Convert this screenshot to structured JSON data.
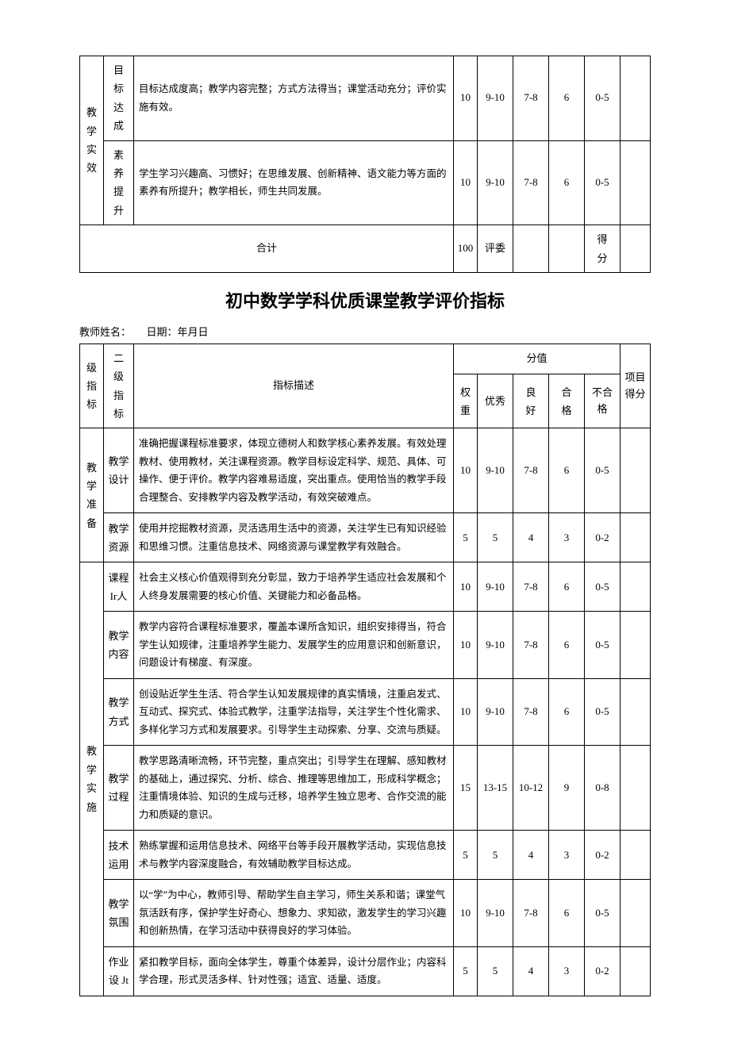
{
  "topTable": {
    "level1": "教学实效",
    "rows": [
      {
        "l2": "目标达成",
        "desc": "目标达成度高；教学内容完整；方式方法得当；课堂活动充分；评价实施有效。",
        "weight": "10",
        "s1": "9-10",
        "s2": "7-8",
        "s3": "6",
        "s4": "0-5"
      },
      {
        "l2": "素养提升",
        "desc": "学生学习兴趣高、习惯好；在思维发展、创新精神、语文能力等方面的素养有所提升；教学相长，师生共同发展。",
        "weight": "10",
        "s1": "9-10",
        "s2": "7-8",
        "s3": "6",
        "s4": "0-5"
      }
    ],
    "totalLabel": "合计",
    "totalWeight": "100",
    "judgeLabel": "评委",
    "scoreLabel": "得分"
  },
  "title": "初中数学学科优质课堂教学评价指标",
  "meta": "教师姓名：　　日期：年月日",
  "header": {
    "l1": "级指标",
    "l2": "二级指标",
    "desc": "指标描述",
    "scoreGroup": "分值",
    "weight": "权重",
    "s1": "优秀",
    "s2": "良好",
    "s3": "合格",
    "s4": "不合格",
    "itemScore": "项目得分"
  },
  "sections": [
    {
      "l1": "教学准备",
      "rows": [
        {
          "l2": "教学设计",
          "desc": "准确把握课程标准要求，体现立德树人和数学核心素养发展。有效处理教材、使用教材，关注课程资源。教学目标设定科学、规范、具体、可操作、便于评价。教学内容难易适度，突出重点。使用恰当的教学手段合理整合、安排教学内容及教学活动，有效突破难点。",
          "weight": "10",
          "s1": "9-10",
          "s2": "7-8",
          "s3": "6",
          "s4": "0-5"
        },
        {
          "l2": "教学资源",
          "desc": "使用并挖掘教材资源，灵活选用生活中的资源，关注学生已有知识经验和思维习惯。注重信息技术、网络资源与课堂教学有效融合。",
          "weight": "5",
          "s1": "5",
          "s2": "4",
          "s3": "3",
          "s4": "0-2"
        }
      ]
    },
    {
      "l1": "教学实施",
      "rows": [
        {
          "l2": "课程\nIr人",
          "desc": "社会主义核心价值观得到充分彰显，致力于培养学生适应社会发展和个人终身发展需要的核心价值、关键能力和必备品格。",
          "weight": "10",
          "s1": "9-10",
          "s2": "7-8",
          "s3": "6",
          "s4": "0-5"
        },
        {
          "l2": "教学内容",
          "desc": "教学内容符合课程标准要求，覆盖本课所含知识，组织安排得当，符合学生认知规律，注重培养学生能力、发展学生的应用意识和创新意识，问题设计有梯度、有深度。",
          "weight": "10",
          "s1": "9-10",
          "s2": "7-8",
          "s3": "6",
          "s4": "0-5"
        },
        {
          "l2": "教学方式",
          "desc": "创设贴近学生生活、符合学生认知发展规律的真实情境，注重启发式、互动式、探究式、体验式教学，注重学法指导，关注学生个性化需求、多样化学习方式和发展要求。引导学生主动探索、分享、交流与质疑。",
          "weight": "10",
          "s1": "9-10",
          "s2": "7-8",
          "s3": "6",
          "s4": "0-5"
        },
        {
          "l2": "教学过程",
          "desc": "教学思路清晰流畅，环节完整，重点突出；引导学生在理解、感知教材的基础上，通过探究、分析、综合、推理等思维加工，形成科学概念；注重情境体验、知识的生成与迁移，培养学生独立思考、合作交流的能力和质疑的意识。",
          "weight": "15",
          "s1": "13-15",
          "s2": "10-12",
          "s3": "9",
          "s4": "0-8"
        },
        {
          "l2": "技术运用",
          "desc": "熟练掌握和运用信息技术、网络平台等手段开展教学活动，实现信息技术与教学内容深度融合，有效辅助教学目标达成。",
          "weight": "5",
          "s1": "5",
          "s2": "4",
          "s3": "3",
          "s4": "0-2"
        },
        {
          "l2": "教学氛围",
          "desc": "以“学”为中心，教师引导、帮助学生自主学习，师生关系和谐；课堂气氛活跃有序，保护学生好奇心、想象力、求知欲，激发学生的学习兴趣和创新热情，在学习活动中获得良好的学习体验。",
          "weight": "10",
          "s1": "9-10",
          "s2": "7-8",
          "s3": "6",
          "s4": "0-5"
        },
        {
          "l2": "作业\n设 Jt",
          "desc": "紧扣教学目标，面向全体学生，尊重个体差异，设计分层作业；内容科学合理，形式灵活多样、针对性强；适宜、适量、适度。",
          "weight": "5",
          "s1": "5",
          "s2": "4",
          "s3": "3",
          "s4": "0-2"
        }
      ]
    }
  ]
}
